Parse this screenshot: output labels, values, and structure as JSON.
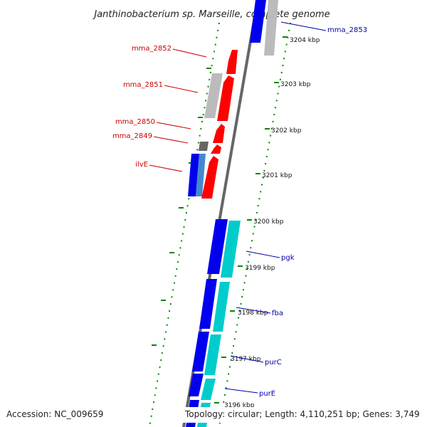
{
  "title": "Janthinobacterium sp. Marseille, complete genome",
  "footer": {
    "accession": "Accession: NC_009659",
    "topology": "Topology: circular; Length: 4,110,251 bp; Genes: 3,749"
  },
  "scale_ticks": [
    "3204 kbp",
    "3203 kbp",
    "3202 kbp",
    "3201 kbp",
    "3200 kbp",
    "3199 kbp",
    "3198 kbp",
    "3197 kbp",
    "3196 kbp"
  ],
  "genes_left": [
    "mma_2852",
    "mma_2851",
    "mma_2850",
    "mma_2849",
    "ilvE"
  ],
  "genes_right": [
    "mma_2853",
    "pgk",
    "fba",
    "purC",
    "purE"
  ],
  "colors": {
    "forward_gene": "#0000ee",
    "reverse_gene": "#ff0000",
    "rna_gene": "#00cccc",
    "other_gene": "#bbbbbb",
    "backbone": "#888888",
    "tick_marks": "#008800"
  }
}
